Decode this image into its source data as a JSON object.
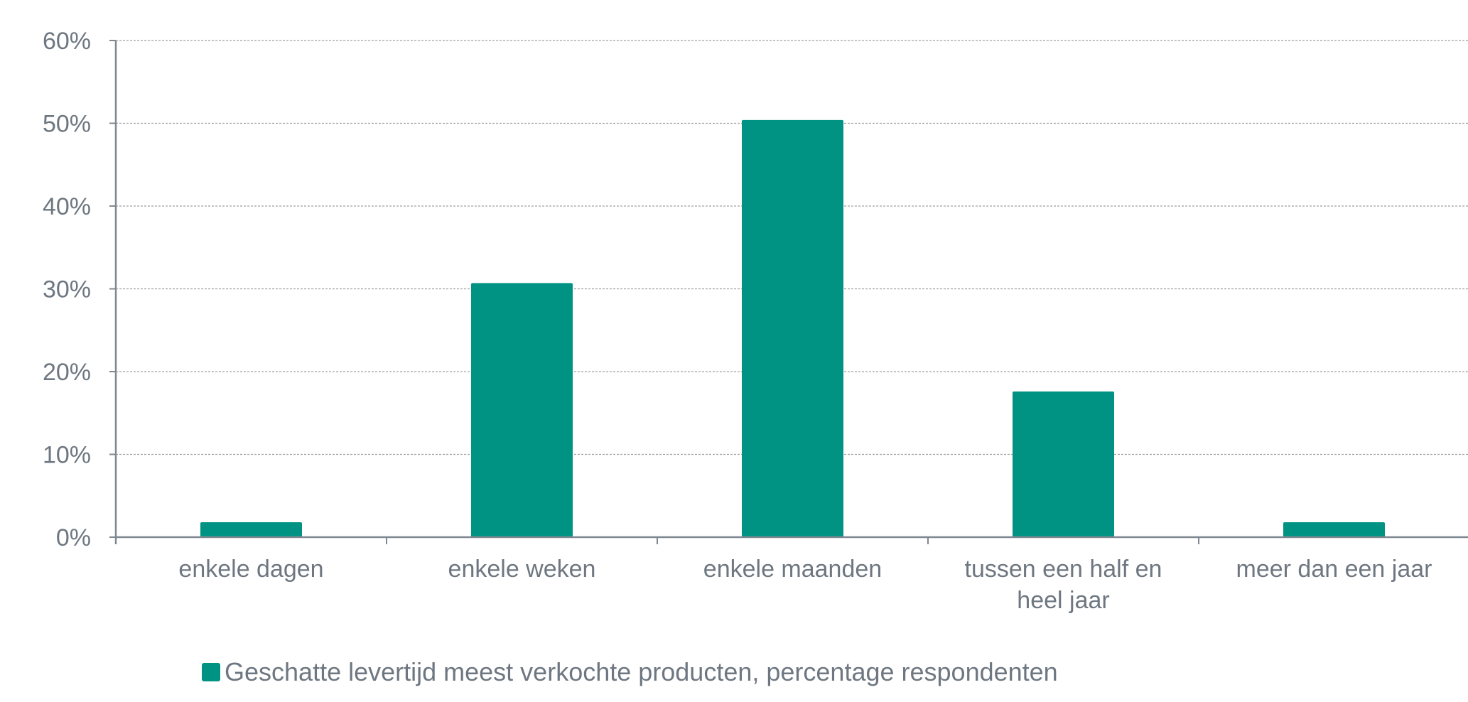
{
  "chart_data": {
    "type": "bar",
    "categories": [
      [
        "enkele dagen"
      ],
      [
        "enkele weken"
      ],
      [
        "enkele maanden"
      ],
      [
        "tussen een half en",
        "heel jaar"
      ],
      [
        "meer dan een jaar"
      ]
    ],
    "series": [
      {
        "name": "Geschatte levertijd meest verkochte producten, percentage respondenten",
        "values": [
          1.8,
          30.7,
          50.4,
          17.6,
          1.8
        ],
        "color": "#009384"
      }
    ],
    "y_ticks": [
      "0%",
      "10%",
      "20%",
      "30%",
      "40%",
      "50%",
      "60%"
    ],
    "ylim": [
      0,
      60
    ],
    "grid": true,
    "grid_style": "dashed",
    "legend_position": "bottom",
    "colors": {
      "axis": "#7f8890",
      "grid": "#a0a0a0",
      "text": "#6e7781"
    }
  }
}
